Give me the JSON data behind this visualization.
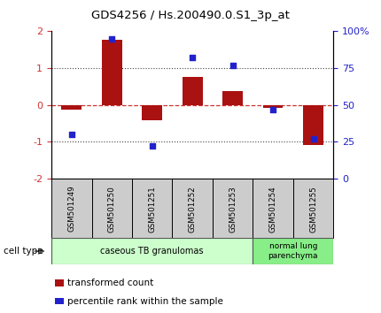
{
  "title": "GDS4256 / Hs.200490.0.S1_3p_at",
  "samples": [
    "GSM501249",
    "GSM501250",
    "GSM501251",
    "GSM501252",
    "GSM501253",
    "GSM501254",
    "GSM501255"
  ],
  "transformed_count": [
    -0.12,
    1.78,
    -0.42,
    0.75,
    0.38,
    -0.07,
    -1.1
  ],
  "percentile_rank": [
    30,
    95,
    22,
    82,
    77,
    47,
    27
  ],
  "ylim_left": [
    -2,
    2
  ],
  "ylim_right": [
    0,
    100
  ],
  "yticks_left": [
    -2,
    -1,
    0,
    1,
    2
  ],
  "yticks_right": [
    0,
    25,
    50,
    75,
    100
  ],
  "ytick_labels_right": [
    "0",
    "25",
    "50",
    "75",
    "100%"
  ],
  "bar_color": "#AA1111",
  "dot_color": "#2222CC",
  "zero_line_color": "#CC3333",
  "dotted_line_color": "#444444",
  "group1_label": "caseous TB granulomas",
  "group1_count": 5,
  "group1_color": "#CCFFCC",
  "group2_label": "normal lung\nparenchyma",
  "group2_count": 2,
  "group2_color": "#88EE88",
  "legend_bar_label": "transformed count",
  "legend_dot_label": "percentile rank within the sample",
  "cell_type_label": "cell type",
  "bg_color": "#FFFFFF",
  "sample_box_color": "#CCCCCC",
  "bar_width": 0.5,
  "dot_size": 22
}
